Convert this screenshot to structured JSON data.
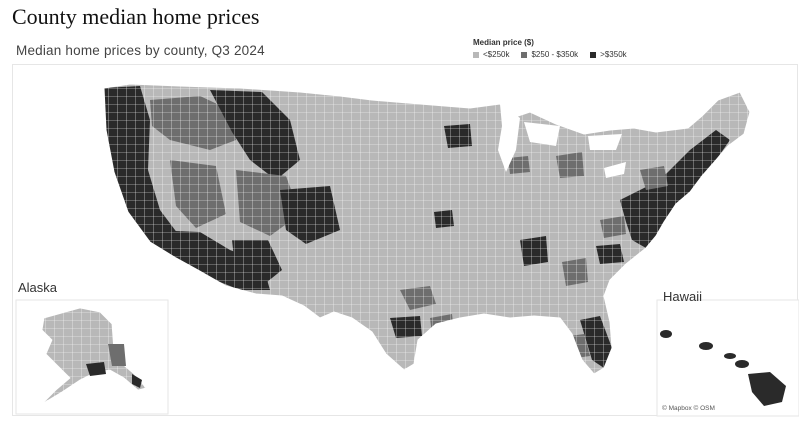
{
  "header": {
    "page_title": "County median home prices",
    "map_title": "Median home prices by county, Q3 2024"
  },
  "legend": {
    "title": "Median price ($)",
    "items": [
      {
        "label": "<$250k",
        "color": "#b8b8b8"
      },
      {
        "label": "$250 - $350k",
        "color": "#6e6e6e"
      },
      {
        "label": ">$350k",
        "color": "#2a2a2a"
      }
    ]
  },
  "insets": {
    "alaska_label": "Alaska",
    "hawaii_label": "Hawaii"
  },
  "attribution": "© Mapbox © OSM"
}
